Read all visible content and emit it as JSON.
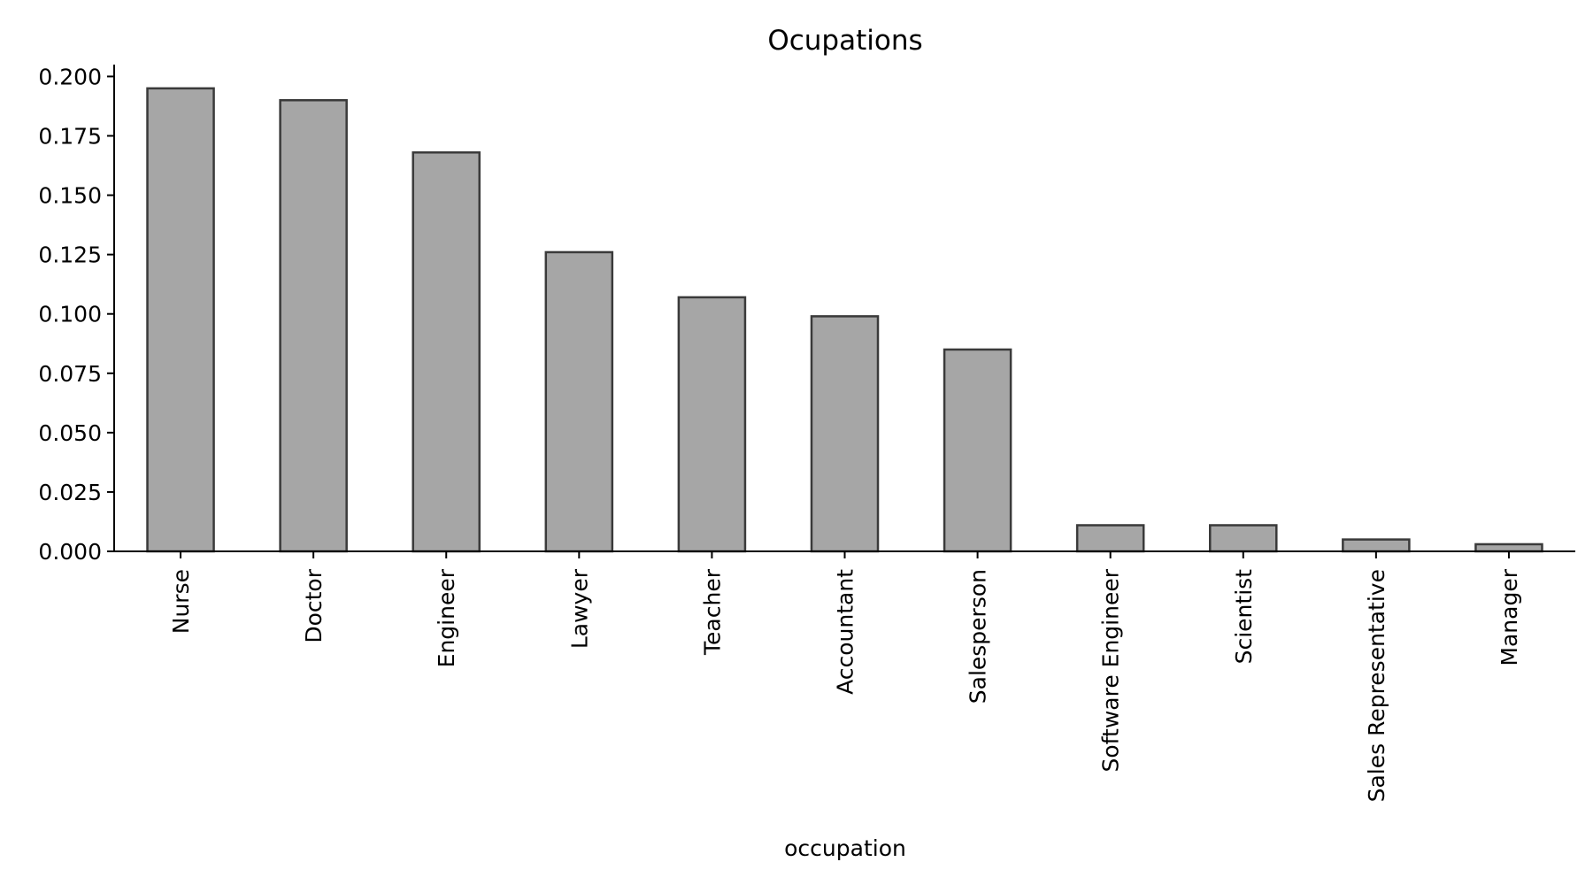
{
  "chart_data": {
    "type": "bar",
    "title": "Ocupations",
    "xlabel": "occupation",
    "ylabel": "",
    "categories": [
      "Nurse",
      "Doctor",
      "Engineer",
      "Lawyer",
      "Teacher",
      "Accountant",
      "Salesperson",
      "Software Engineer",
      "Scientist",
      "Sales Representative",
      "Manager"
    ],
    "values": [
      0.195,
      0.19,
      0.168,
      0.126,
      0.107,
      0.099,
      0.085,
      0.011,
      0.011,
      0.005,
      0.003
    ],
    "ylim": [
      0,
      0.205
    ],
    "yticks": [
      "0.000",
      "0.025",
      "0.050",
      "0.075",
      "0.100",
      "0.125",
      "0.150",
      "0.175",
      "0.200"
    ],
    "grid": false,
    "legend": "none",
    "colors": {
      "bar_fill": "#a6a6a6",
      "bar_edge": "#3a3a3a"
    }
  }
}
